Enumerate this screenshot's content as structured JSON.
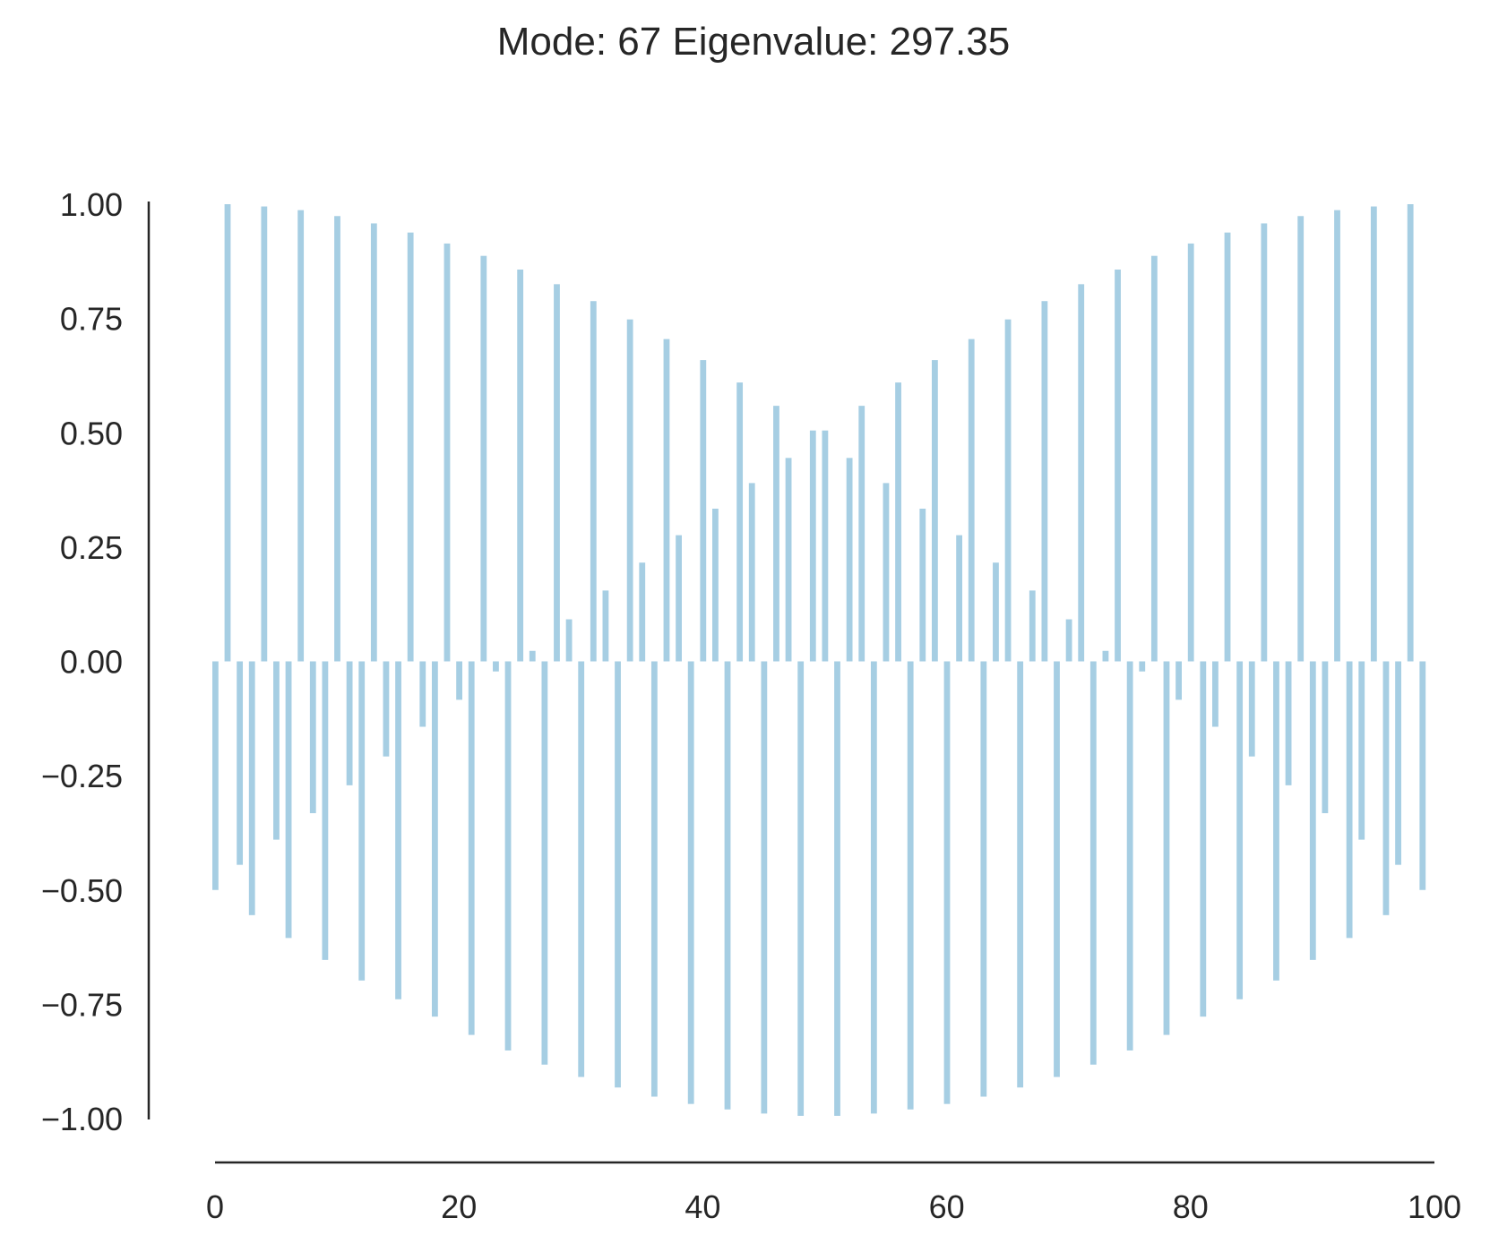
{
  "chart_data": {
    "type": "bar",
    "title": "Mode: 67  Eigenvalue: 297.35",
    "xlabel": "",
    "ylabel": "",
    "xlim": [
      0,
      100
    ],
    "ylim": [
      -1.0,
      1.0
    ],
    "xticks": [
      "0",
      "20",
      "40",
      "60",
      "80",
      "100"
    ],
    "yticks": [
      "1.00",
      "0.75",
      "0.50",
      "0.25",
      "0.00",
      "−0.25",
      "−0.50",
      "−0.75",
      "−1.00"
    ],
    "grid": false,
    "bar_color": "#a6cee3",
    "axis_color": "#262626",
    "x": [
      0,
      1,
      2,
      3,
      4,
      5,
      6,
      7,
      8,
      9,
      10,
      11,
      12,
      13,
      14,
      15,
      16,
      17,
      18,
      19,
      20,
      21,
      22,
      23,
      24,
      25,
      26,
      27,
      28,
      29,
      30,
      31,
      32,
      33,
      34,
      35,
      36,
      37,
      38,
      39,
      40,
      41,
      42,
      43,
      44,
      45,
      46,
      47,
      48,
      49,
      50,
      51,
      52,
      53,
      54,
      55,
      56,
      57,
      58,
      59,
      60,
      61,
      62,
      63,
      64,
      65,
      66,
      67,
      68,
      69,
      70,
      71,
      72,
      73,
      74,
      75,
      76,
      77,
      78,
      79,
      80,
      81,
      82,
      83,
      84,
      85,
      86,
      87,
      88,
      89,
      90,
      91,
      92,
      93,
      94,
      95,
      96,
      97,
      98,
      99
    ],
    "values": [
      -0.5,
      1.0,
      -0.445,
      -0.555,
      0.995,
      -0.39,
      -0.605,
      0.987,
      -0.332,
      -0.653,
      0.974,
      -0.271,
      -0.698,
      0.958,
      -0.208,
      -0.739,
      0.938,
      -0.143,
      -0.777,
      0.914,
      -0.084,
      -0.817,
      0.887,
      -0.022,
      -0.851,
      0.857,
      0.023,
      -0.882,
      0.825,
      0.092,
      -0.909,
      0.788,
      0.155,
      -0.932,
      0.748,
      0.216,
      -0.952,
      0.705,
      0.276,
      -0.968,
      0.659,
      0.334,
      -0.98,
      0.61,
      0.39,
      -0.989,
      0.559,
      0.445,
      -0.994,
      0.505,
      0.505,
      -0.994,
      0.445,
      0.559,
      -0.989,
      0.39,
      0.61,
      -0.98,
      0.334,
      0.659,
      -0.968,
      0.276,
      0.705,
      -0.952,
      0.216,
      0.748,
      -0.932,
      0.155,
      0.788,
      -0.909,
      0.092,
      0.825,
      -0.882,
      0.023,
      0.857,
      -0.851,
      -0.022,
      0.887,
      -0.817,
      -0.084,
      0.914,
      -0.777,
      -0.143,
      0.938,
      -0.739,
      -0.208,
      0.958,
      -0.698,
      -0.271,
      0.974,
      -0.653,
      -0.332,
      0.987,
      -0.605,
      -0.39,
      0.995,
      -0.555,
      -0.445,
      1.0,
      -0.5
    ]
  }
}
